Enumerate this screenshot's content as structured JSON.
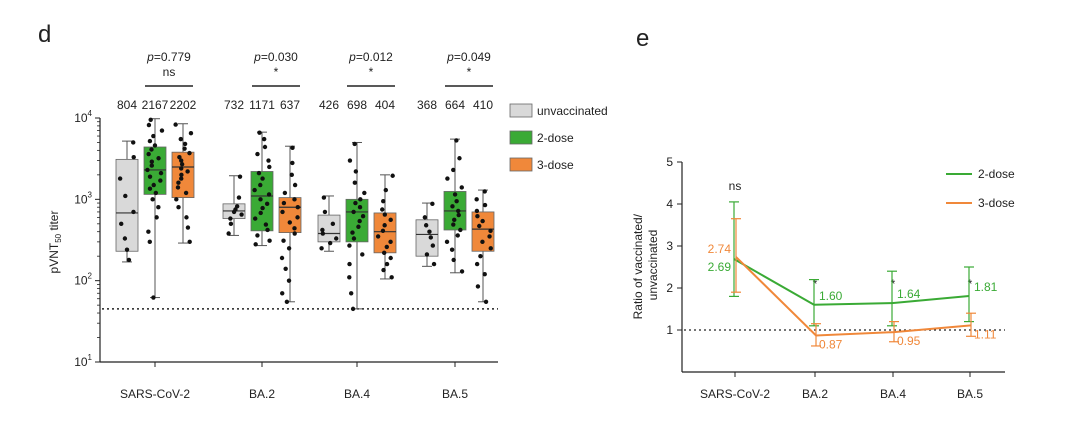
{
  "panels": {
    "d_label": "d",
    "e_label": "e"
  },
  "chart_data": [
    {
      "type": "box",
      "panel": "d",
      "ylabel_main": "pVNT",
      "ylabel_sub": "50",
      "ylabel_tail": " titer",
      "yscale": "log",
      "ylim": [
        10,
        10000
      ],
      "yticks": [
        {
          "value": 10,
          "base": "10",
          "exp": "1"
        },
        {
          "value": 100,
          "base": "10",
          "exp": "2"
        },
        {
          "value": 1000,
          "base": "10",
          "exp": "3"
        },
        {
          "value": 10000,
          "base": "10",
          "exp": "4"
        }
      ],
      "detection_limit": 45,
      "categories": [
        "SARS-CoV-2",
        "BA.2",
        "BA.4",
        "BA.5"
      ],
      "series": [
        {
          "name": "unvaccinated",
          "color": "#d9d9d9"
        },
        {
          "name": "2-dose",
          "color": "#3aaa35"
        },
        {
          "name": "3-dose",
          "color": "#f0883a"
        }
      ],
      "legend_position": "top-right",
      "groups": [
        {
          "counts": [
            "804",
            "2167",
            "2202"
          ],
          "p_label": "p",
          "p_value": "=0.779",
          "sig": "ns",
          "boxes": [
            {
              "min": 170,
              "q1": 230,
              "median": 680,
              "q3": 3100,
              "max": 5200,
              "points": [
                5000,
                3300,
                1800,
                1100,
                700,
                500,
                330,
                240,
                180
              ]
            },
            {
              "min": 62,
              "q1": 1150,
              "median": 2300,
              "q3": 4400,
              "max": 9800,
              "points": [
                9500,
                8200,
                7000,
                6000,
                5200,
                4600,
                4100,
                3600,
                3200,
                2900,
                2600,
                2300,
                2100,
                1900,
                1700,
                1500,
                1350,
                1200,
                1000,
                800,
                600,
                400,
                300,
                62
              ]
            },
            {
              "min": 290,
              "q1": 1050,
              "median": 2500,
              "q3": 3800,
              "max": 8500,
              "points": [
                8300,
                6500,
                5500,
                4800,
                4200,
                3700,
                3300,
                3000,
                2700,
                2400,
                2200,
                2000,
                1800,
                1600,
                1400,
                1200,
                1000,
                800,
                600,
                450,
                300
              ]
            }
          ]
        },
        {
          "counts": [
            "732",
            "1171",
            "637"
          ],
          "p_label": "p",
          "p_value": "=0.030",
          "sig": "*",
          "boxes": [
            {
              "min": 360,
              "q1": 580,
              "median": 720,
              "q3": 880,
              "max": 1950,
              "points": [
                1900,
                1050,
                820,
                750,
                700,
                650,
                580,
                500,
                380
              ]
            },
            {
              "min": 270,
              "q1": 410,
              "median": 1100,
              "q3": 2200,
              "max": 6700,
              "points": [
                6600,
                5500,
                4400,
                3600,
                3000,
                2500,
                2100,
                1800,
                1500,
                1300,
                1150,
                1000,
                880,
                780,
                680,
                580,
                490,
                420,
                360,
                310,
                280
              ]
            },
            {
              "min": 55,
              "q1": 390,
              "median": 800,
              "q3": 1050,
              "max": 4500,
              "points": [
                4300,
                2800,
                2000,
                1500,
                1200,
                1000,
                900,
                800,
                700,
                600,
                520,
                440,
                380,
                310,
                250,
                190,
                140,
                100,
                70,
                55
              ]
            }
          ]
        },
        {
          "counts": [
            "426",
            "698",
            "404"
          ],
          "p_label": "p",
          "p_value": "=0.012",
          "sig": "*",
          "boxes": [
            {
              "min": 230,
              "q1": 300,
              "median": 380,
              "q3": 640,
              "max": 1100,
              "points": [
                1050,
                700,
                500,
                420,
                380,
                330,
                290,
                250
              ]
            },
            {
              "min": 45,
              "q1": 300,
              "median": 700,
              "q3": 1000,
              "max": 5000,
              "points": [
                4800,
                3000,
                2200,
                1600,
                1200,
                1000,
                900,
                800,
                700,
                620,
                540,
                460,
                390,
                330,
                270,
                210,
                160,
                110,
                70,
                45
              ]
            },
            {
              "min": 105,
              "q1": 220,
              "median": 400,
              "q3": 680,
              "max": 2000,
              "points": [
                1950,
                1300,
                950,
                750,
                650,
                560,
                480,
                410,
                350,
                300,
                260,
                220,
                190,
                160,
                135,
                110
              ]
            }
          ]
        },
        {
          "counts": [
            "368",
            "664",
            "410"
          ],
          "p_label": "p",
          "p_value": "=0.049",
          "sig": "*",
          "boxes": [
            {
              "min": 150,
              "q1": 200,
              "median": 370,
              "q3": 560,
              "max": 900,
              "points": [
                880,
                600,
                480,
                400,
                340,
                270,
                210,
                160
              ]
            },
            {
              "min": 125,
              "q1": 420,
              "median": 720,
              "q3": 1250,
              "max": 5500,
              "points": [
                5300,
                3200,
                2300,
                1800,
                1400,
                1150,
                950,
                820,
                720,
                640,
                560,
                490,
                420,
                360,
                300,
                240,
                180,
                130
              ]
            },
            {
              "min": 55,
              "q1": 230,
              "median": 430,
              "q3": 700,
              "max": 1300,
              "points": [
                1250,
                1000,
                850,
                720,
                620,
                540,
                470,
                410,
                350,
                300,
                250,
                200,
                160,
                120,
                85,
                55
              ]
            }
          ]
        }
      ]
    },
    {
      "type": "line",
      "panel": "e",
      "ylabel_line1": "Ratio of vaccinated/",
      "ylabel_line2": "unvaccinated",
      "ylim": [
        0,
        5
      ],
      "yticks": [
        1,
        2,
        3,
        4,
        5
      ],
      "reference_line": 1,
      "categories": [
        "SARS-CoV-2",
        "BA.2",
        "BA.4",
        "BA.5"
      ],
      "significance": [
        "ns",
        "*",
        "*",
        "*"
      ],
      "legend_position": "top-right",
      "series": [
        {
          "name": "2-dose",
          "color": "#3aaa35",
          "values": [
            2.69,
            1.6,
            1.64,
            1.81
          ],
          "labels": [
            "2.69",
            "1.60",
            "1.64",
            "1.81"
          ],
          "err_low": [
            1.8,
            1.1,
            1.1,
            1.2
          ],
          "err_high": [
            4.05,
            2.2,
            2.4,
            2.5
          ]
        },
        {
          "name": "3-dose",
          "color": "#f0883a",
          "values": [
            2.74,
            0.87,
            0.95,
            1.11
          ],
          "labels": [
            "2.74",
            "0.87",
            "0.95",
            "1.11"
          ],
          "err_low": [
            1.9,
            0.62,
            0.72,
            0.85
          ],
          "err_high": [
            3.65,
            1.15,
            1.2,
            1.4
          ]
        }
      ]
    }
  ]
}
